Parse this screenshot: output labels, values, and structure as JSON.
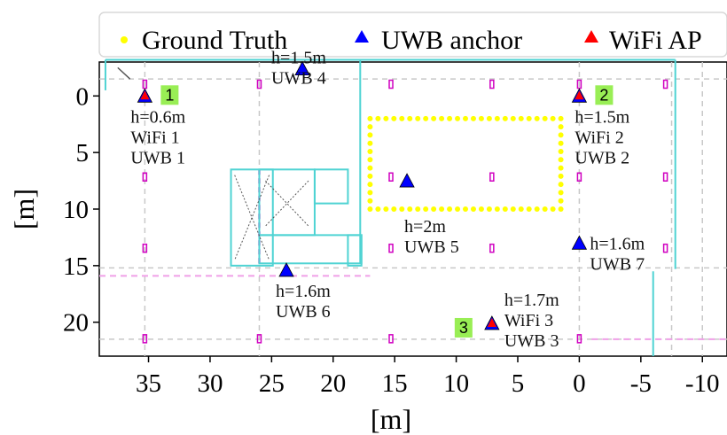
{
  "chart_data": {
    "type": "scatter",
    "xlabel": "[m]",
    "ylabel": "[m]",
    "xlim": [
      39,
      -12
    ],
    "ylim": [
      23,
      -3
    ],
    "x_ticks": [
      "35",
      "30",
      "25",
      "20",
      "15",
      "10",
      "5",
      "0",
      "-5",
      "-10"
    ],
    "y_ticks": [
      "0",
      "5",
      "10",
      "15",
      "20"
    ],
    "legend": {
      "placement": "top",
      "entries": [
        {
          "label": "Ground Truth",
          "color": "#ffff00",
          "marker": "dot"
        },
        {
          "label": "UWB anchor",
          "color": "#0000ff",
          "marker": "triangle"
        },
        {
          "label": "WiFi AP",
          "color": "#ff0000",
          "marker": "triangle"
        }
      ]
    },
    "series": [
      {
        "name": "UWB anchor",
        "color": "#0000ff",
        "points": [
          {
            "x": 35.3,
            "y": 0.0,
            "label_h": "h=0.6m",
            "label_ids": [
              "WiFi 1",
              "UWB 1"
            ]
          },
          {
            "x": 0.0,
            "y": 0.0,
            "label_h": "h=1.5m",
            "label_ids": [
              "WiFi 2",
              "UWB 2"
            ]
          },
          {
            "x": 7.1,
            "y": 20.1,
            "label_h": "h=1.7m",
            "label_ids": [
              "WiFi 3",
              "UWB 3"
            ]
          },
          {
            "x": 22.5,
            "y": -2.4,
            "label_h": "h=1.5m",
            "label_ids": [
              "UWB 4"
            ]
          },
          {
            "x": 14.0,
            "y": 7.5,
            "label_h": "h=2m",
            "label_ids": [
              "UWB 5"
            ]
          },
          {
            "x": 23.8,
            "y": 15.4,
            "label_h": "h=1.6m",
            "label_ids": [
              "UWB 6"
            ]
          },
          {
            "x": 0.0,
            "y": 13.0,
            "label_h": "h=1.6m",
            "label_ids": [
              "UWB 7"
            ]
          }
        ]
      },
      {
        "name": "WiFi AP",
        "color": "#ff0000",
        "points": [
          {
            "x": 35.3,
            "y": 0.0,
            "badge": "1"
          },
          {
            "x": 0.0,
            "y": 0.0,
            "badge": "2"
          },
          {
            "x": 7.1,
            "y": 20.1,
            "badge": "3"
          }
        ]
      },
      {
        "name": "Ground Truth",
        "color": "#ffff00",
        "path": [
          [
            17.0,
            2.0
          ],
          [
            1.5,
            2.0
          ],
          [
            1.5,
            10.0
          ],
          [
            17.0,
            10.0
          ],
          [
            17.0,
            2.0
          ]
        ]
      }
    ],
    "grid": true,
    "colors": {
      "walls": "#4fd3d3",
      "dashed": "#c8c8c8",
      "pink_dashed": "#f0a0e8",
      "pillar": "#d000c0",
      "badge_bg": "#99ee55"
    }
  }
}
